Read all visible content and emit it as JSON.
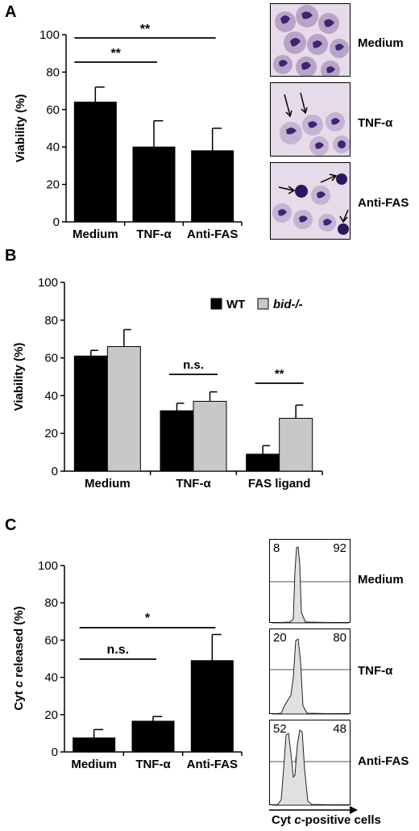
{
  "panels": {
    "a": {
      "letter": "A"
    },
    "b": {
      "letter": "B"
    },
    "c": {
      "letter": "C"
    }
  },
  "chart_data": [
    {
      "panel": "A",
      "type": "bar",
      "categories": [
        "Medium",
        "TNF-α",
        "Anti-FAS"
      ],
      "values": [
        64,
        40,
        38
      ],
      "errors": [
        8,
        14,
        12
      ],
      "ylabel": "Viability (%)",
      "ylim": [
        0,
        100
      ],
      "yticks": [
        0,
        20,
        40,
        60,
        80,
        100
      ],
      "bar_color": "#000000",
      "significance": [
        {
          "label": "**",
          "from": 0,
          "to": 2
        },
        {
          "label": "**",
          "from": 0,
          "to": 1
        }
      ]
    },
    {
      "panel": "B",
      "type": "bar",
      "categories": [
        "Medium",
        "TNF-α",
        "FAS ligand"
      ],
      "series": [
        {
          "name": "WT",
          "values": [
            61,
            32,
            9
          ],
          "errors": [
            3,
            4,
            4.5
          ],
          "color": "#000000"
        },
        {
          "name": "bid-/-",
          "values": [
            66,
            37,
            28
          ],
          "errors": [
            9,
            5,
            7
          ],
          "color": "#c8c8c8"
        }
      ],
      "ylabel": "Viability (%)",
      "ylim": [
        0,
        100
      ],
      "yticks": [
        0,
        20,
        40,
        60,
        80,
        100
      ],
      "legend_position": "top-right",
      "significance": [
        {
          "label": "n.s.",
          "category": 1
        },
        {
          "label": "**",
          "category": 2
        }
      ]
    },
    {
      "panel": "C",
      "type": "bar",
      "categories": [
        "Medium",
        "TNF-α",
        "Anti-FAS"
      ],
      "values": [
        7.5,
        16.5,
        49
      ],
      "errors": [
        4.5,
        2.5,
        14
      ],
      "ylabel_prefix": "Cyt ",
      "ylabel_italic": "c",
      "ylabel_suffix": " released  (%)",
      "ylim": [
        0,
        100
      ],
      "yticks": [
        0,
        20,
        40,
        60,
        80,
        100
      ],
      "bar_color": "#000000",
      "significance": [
        {
          "label": "*",
          "from": 0,
          "to": 2
        },
        {
          "label": "n.s.",
          "from": 0,
          "to": 1
        }
      ]
    }
  ],
  "micrographs": {
    "labels": [
      "Medium",
      "TNF-α",
      "Anti-FAS"
    ]
  },
  "flow": {
    "rows": [
      {
        "label": "Medium",
        "left_pct": "8",
        "right_pct": "92"
      },
      {
        "label": "TNF-α",
        "left_pct": "20",
        "right_pct": "80"
      },
      {
        "label": "Anti-FAS",
        "left_pct": "52",
        "right_pct": "48"
      }
    ],
    "xlabel_prefix": "Cyt ",
    "xlabel_italic": "c",
    "xlabel_suffix": "-positive cells"
  }
}
